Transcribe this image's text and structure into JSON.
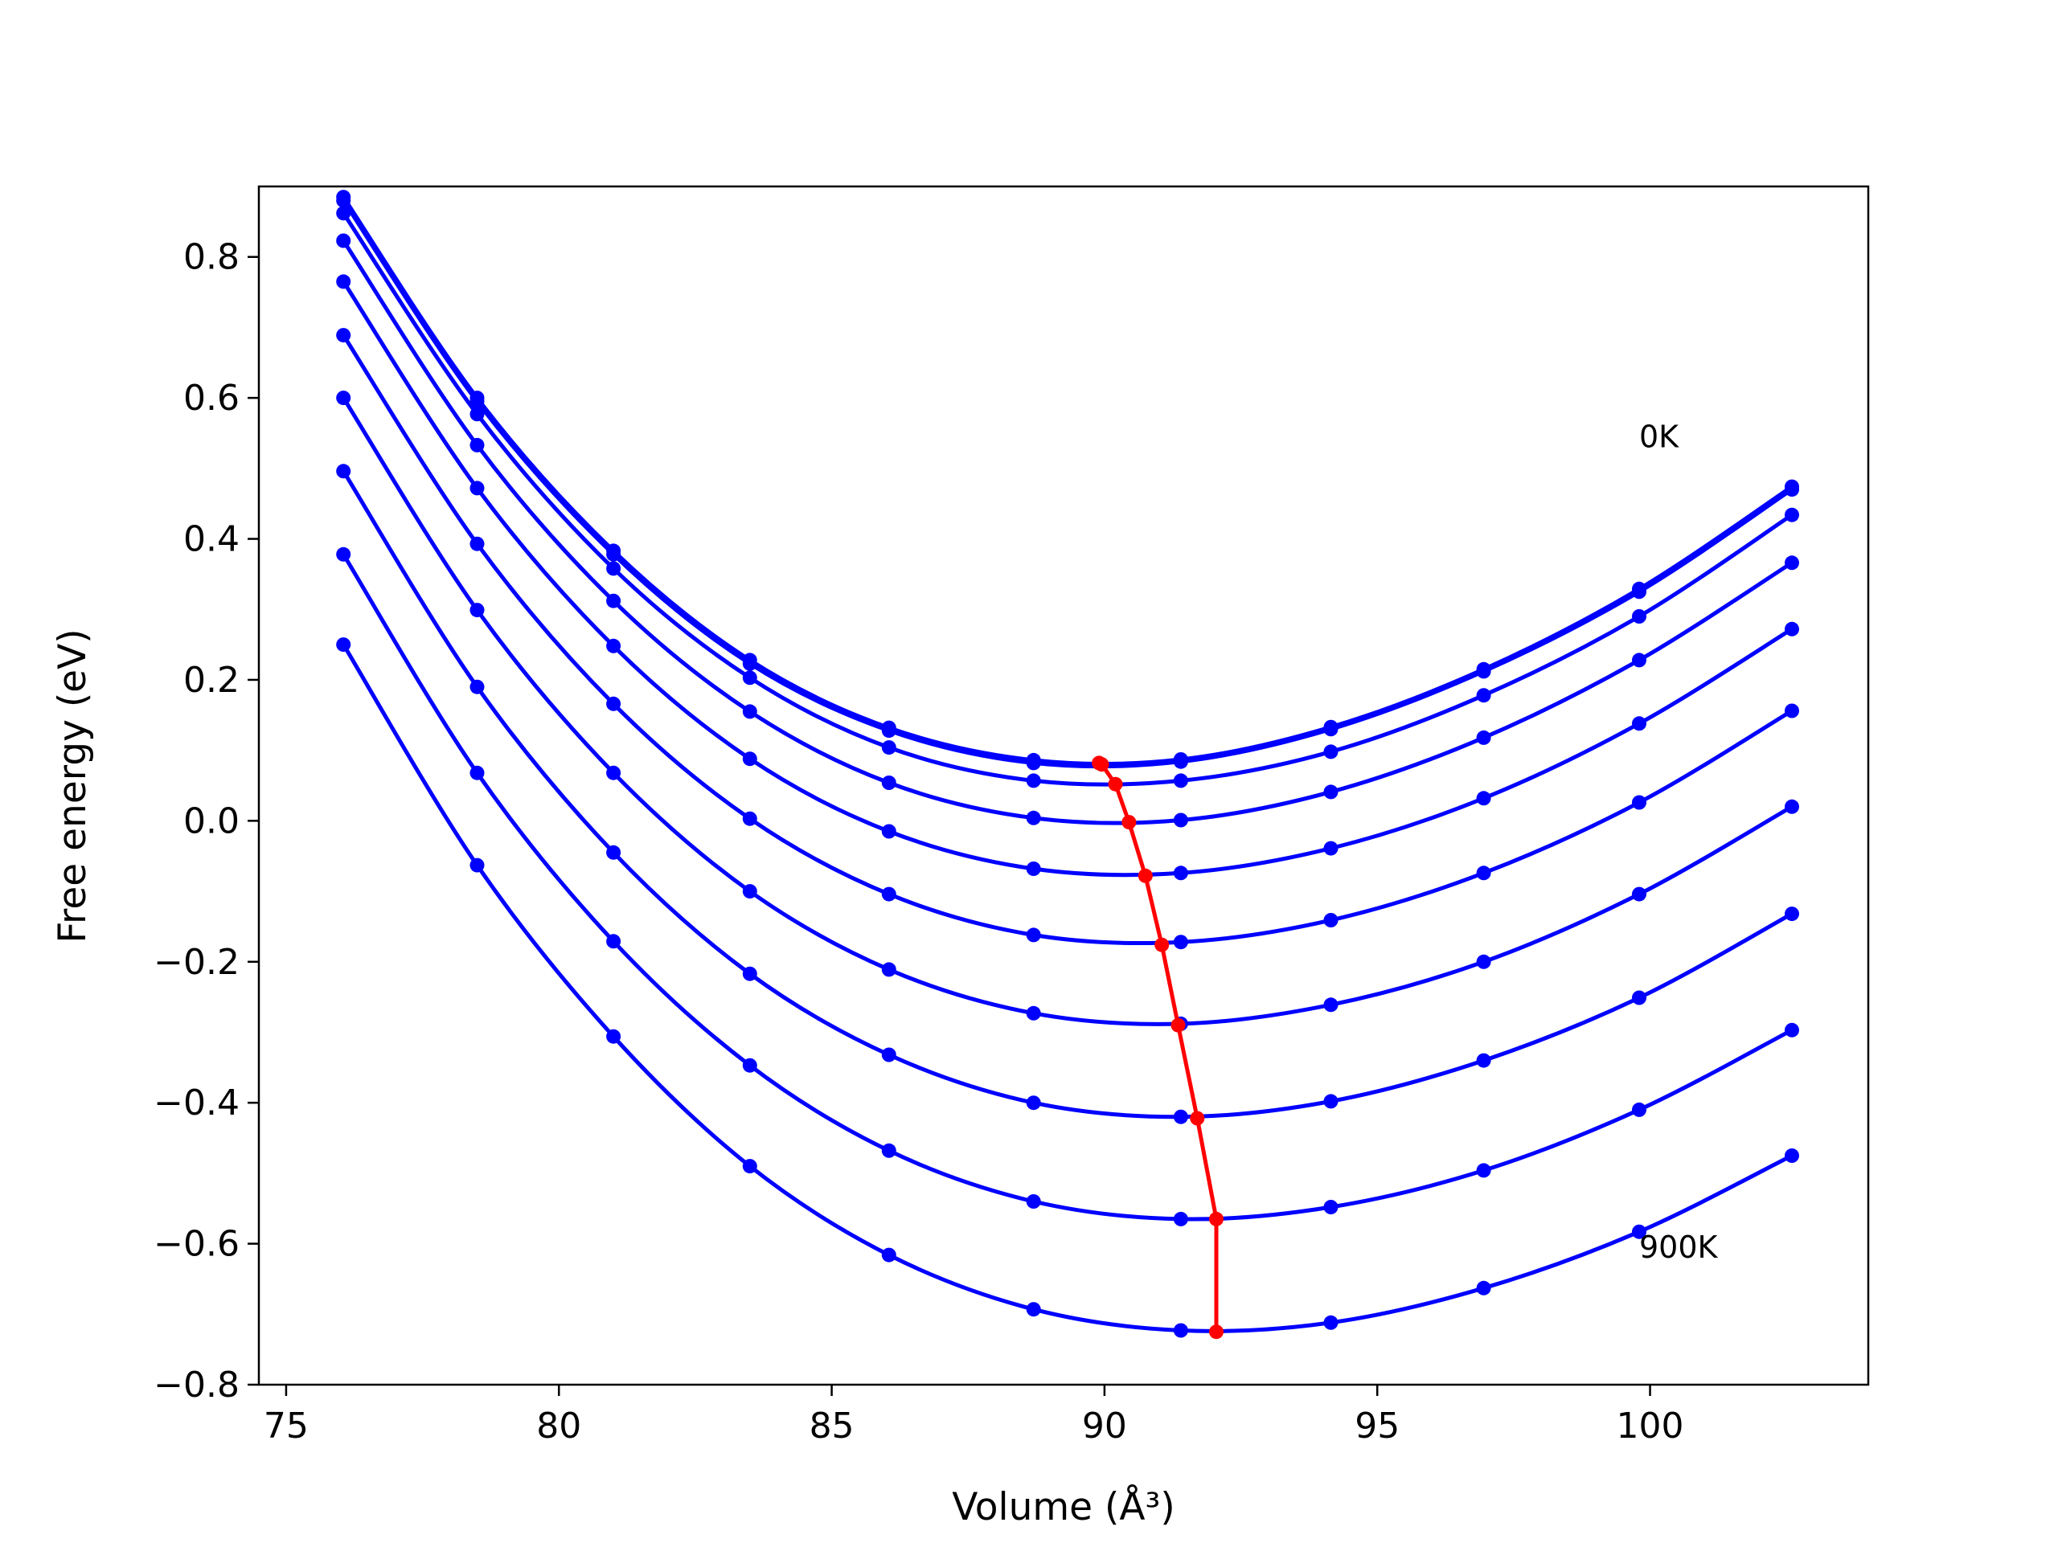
{
  "chart_data": {
    "type": "line",
    "title": "",
    "xlabel": "Volume (Å³)",
    "ylabel": "Free energy (eV)",
    "xlim": [
      74.5,
      104.0
    ],
    "ylim": [
      -0.8,
      0.9
    ],
    "xticks": [
      75,
      80,
      85,
      90,
      95,
      100
    ],
    "xtick_labels": [
      "75",
      "80",
      "85",
      "90",
      "95",
      "100"
    ],
    "yticks": [
      -0.8,
      -0.6,
      -0.4,
      -0.2,
      0.0,
      0.2,
      0.4,
      0.6,
      0.8
    ],
    "ytick_labels": [
      "−0.8",
      "−0.6",
      "−0.4",
      "−0.2",
      "0.0",
      "0.2",
      "0.4",
      "0.6",
      "0.8"
    ],
    "grid": false,
    "annotations": [
      {
        "text": "0K",
        "x": 99.8,
        "y": 0.53
      },
      {
        "text": "900K",
        "x": 99.8,
        "y": -0.62
      }
    ],
    "x": [
      76.05,
      78.5,
      81.0,
      83.5,
      86.05,
      88.7,
      91.4,
      94.15,
      96.95,
      99.8,
      102.6
    ],
    "series": [
      {
        "color": "#0000ff",
        "values": [
          0.885,
          0.6,
          0.383,
          0.228,
          0.132,
          0.086,
          0.087,
          0.133,
          0.215,
          0.329,
          0.474
        ]
      },
      {
        "color": "#0000ff",
        "values": [
          0.88,
          0.595,
          0.378,
          0.223,
          0.128,
          0.082,
          0.084,
          0.13,
          0.212,
          0.325,
          0.47
        ]
      },
      {
        "color": "#0000ff",
        "values": [
          0.862,
          0.577,
          0.358,
          0.203,
          0.104,
          0.057,
          0.057,
          0.098,
          0.178,
          0.29,
          0.434
        ]
      },
      {
        "color": "#0000ff",
        "values": [
          0.823,
          0.533,
          0.312,
          0.155,
          0.054,
          0.004,
          0.001,
          0.041,
          0.118,
          0.228,
          0.366
        ]
      },
      {
        "color": "#0000ff",
        "values": [
          0.765,
          0.472,
          0.248,
          0.088,
          -0.015,
          -0.068,
          -0.074,
          -0.039,
          0.032,
          0.138,
          0.272
        ]
      },
      {
        "color": "#0000ff",
        "values": [
          0.689,
          0.393,
          0.166,
          0.003,
          -0.104,
          -0.162,
          -0.172,
          -0.141,
          -0.074,
          0.026,
          0.156
        ]
      },
      {
        "color": "#0000ff",
        "values": [
          0.6,
          0.299,
          0.068,
          -0.1,
          -0.211,
          -0.273,
          -0.288,
          -0.261,
          -0.2,
          -0.104,
          0.02
        ]
      },
      {
        "color": "#0000ff",
        "values": [
          0.496,
          0.19,
          -0.045,
          -0.217,
          -0.332,
          -0.4,
          -0.42,
          -0.398,
          -0.34,
          -0.251,
          -0.132
        ]
      },
      {
        "color": "#0000ff",
        "values": [
          0.378,
          0.068,
          -0.171,
          -0.347,
          -0.468,
          -0.54,
          -0.565,
          -0.548,
          -0.496,
          -0.41,
          -0.297
        ]
      },
      {
        "color": "#0000ff",
        "values": [
          0.25,
          -0.063,
          -0.306,
          -0.49,
          -0.616,
          -0.693,
          -0.723,
          -0.712,
          -0.663,
          -0.583,
          -0.475
        ]
      }
    ],
    "minima_series": {
      "color": "#ff0000",
      "x": [
        89.9,
        89.95,
        90.2,
        90.45,
        90.75,
        91.05,
        91.35,
        91.7,
        92.05
      ],
      "y": [
        0.082,
        0.08,
        0.052,
        -0.002,
        -0.078,
        -0.176,
        -0.29,
        -0.422,
        -0.565
      ]
    },
    "minima_series_last": {
      "x": 92.05,
      "y": -0.725
    }
  }
}
